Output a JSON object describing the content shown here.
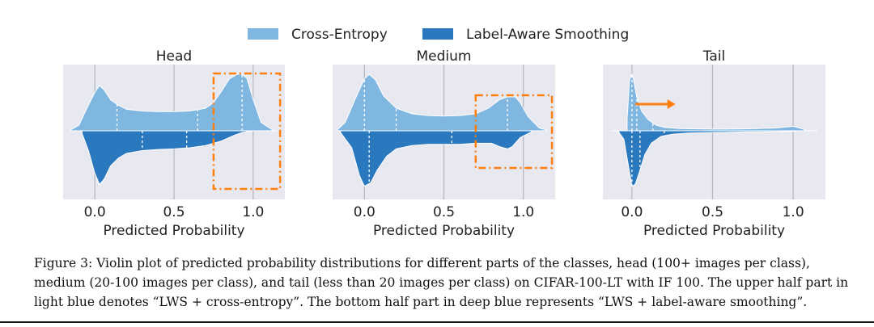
{
  "legend": [
    {
      "label": "Cross-Entropy",
      "color": "#7fb7e0"
    },
    {
      "label": "Label-Aware Smoothing",
      "color": "#2a78bd"
    }
  ],
  "colors": {
    "upper": "#7fb7e0",
    "lower": "#2a78bd",
    "panel_bg": "#e8e8f0",
    "highlight": "#ff7f0e"
  },
  "chart_data": [
    {
      "type": "violin",
      "title": "Head",
      "xlabel": "Predicted Probability",
      "xlim": [
        -0.2,
        1.2
      ],
      "xticks": [
        0.0,
        0.5,
        1.0
      ],
      "xtick_labels": [
        "0.0",
        "0.5",
        "1.0"
      ],
      "series": [
        {
          "name": "Cross-Entropy",
          "side": "upper",
          "density_x": [
            -0.15,
            -0.1,
            -0.05,
            0.0,
            0.03,
            0.06,
            0.1,
            0.15,
            0.2,
            0.3,
            0.4,
            0.5,
            0.6,
            0.7,
            0.75,
            0.8,
            0.85,
            0.9,
            0.93,
            0.96,
            1.0,
            1.05,
            1.12
          ],
          "density_y": [
            0.02,
            0.1,
            0.4,
            0.68,
            0.8,
            0.72,
            0.55,
            0.45,
            0.38,
            0.35,
            0.34,
            0.34,
            0.35,
            0.4,
            0.5,
            0.7,
            0.92,
            1.0,
            1.0,
            0.93,
            0.55,
            0.15,
            0.02
          ],
          "quartiles": [
            0.14,
            0.65,
            0.93
          ]
        },
        {
          "name": "Label-Aware Smoothing",
          "side": "lower",
          "density_x": [
            -0.08,
            -0.04,
            0.0,
            0.03,
            0.06,
            0.1,
            0.15,
            0.2,
            0.3,
            0.4,
            0.5,
            0.6,
            0.7,
            0.8,
            0.88,
            0.93,
            0.97,
            1.0
          ],
          "density_y": [
            0.05,
            0.35,
            0.75,
            0.95,
            0.85,
            0.62,
            0.48,
            0.4,
            0.35,
            0.33,
            0.32,
            0.3,
            0.26,
            0.18,
            0.08,
            0.03,
            0.01,
            0.0
          ],
          "quartiles": [
            0.3,
            0.58
          ]
        }
      ],
      "highlight_box": {
        "x_range": [
          0.75,
          1.17
        ],
        "label": ""
      }
    },
    {
      "type": "violin",
      "title": "Medium",
      "xlabel": "Predicted Probability",
      "xlim": [
        -0.2,
        1.2
      ],
      "xticks": [
        0.0,
        0.5,
        1.0
      ],
      "xtick_labels": [
        "0.0",
        "0.5",
        "1.0"
      ],
      "series": [
        {
          "name": "Cross-Entropy",
          "side": "upper",
          "density_x": [
            -0.17,
            -0.12,
            -0.06,
            0.0,
            0.03,
            0.07,
            0.12,
            0.2,
            0.3,
            0.4,
            0.5,
            0.6,
            0.7,
            0.78,
            0.85,
            0.9,
            0.95,
            0.98,
            1.03,
            1.1,
            1.15
          ],
          "density_y": [
            0.02,
            0.15,
            0.55,
            0.92,
            1.0,
            0.9,
            0.62,
            0.4,
            0.3,
            0.27,
            0.26,
            0.27,
            0.3,
            0.4,
            0.55,
            0.6,
            0.6,
            0.5,
            0.25,
            0.05,
            0.01
          ],
          "quartiles": [
            0.0,
            0.2,
            0.9
          ]
        },
        {
          "name": "Label-Aware Smoothing",
          "side": "lower",
          "density_x": [
            -0.15,
            -0.08,
            -0.03,
            0.0,
            0.04,
            0.08,
            0.14,
            0.2,
            0.3,
            0.4,
            0.5,
            0.6,
            0.7,
            0.8,
            0.85,
            0.9,
            0.93,
            0.98,
            1.05
          ],
          "density_y": [
            0.03,
            0.3,
            0.8,
            0.98,
            0.92,
            0.7,
            0.45,
            0.32,
            0.26,
            0.24,
            0.24,
            0.24,
            0.22,
            0.22,
            0.28,
            0.32,
            0.28,
            0.12,
            0.02
          ],
          "quartiles": [
            0.03,
            0.55
          ]
        }
      ],
      "highlight_box": {
        "x_range": [
          0.7,
          1.18
        ],
        "label": ""
      }
    },
    {
      "type": "violin",
      "title": "Tail",
      "xlabel": "Predicted Probability",
      "xlim": [
        -0.18,
        1.2
      ],
      "xticks": [
        0.0,
        0.5,
        1.0
      ],
      "xtick_labels": [
        "0.0",
        "0.5",
        "1.0"
      ],
      "series": [
        {
          "name": "Cross-Entropy",
          "side": "upper",
          "density_x": [
            -0.03,
            -0.015,
            0.0,
            0.01,
            0.03,
            0.06,
            0.1,
            0.15,
            0.2,
            0.3,
            0.5,
            0.7,
            0.9,
            1.0,
            1.05,
            1.08
          ],
          "density_y": [
            0.2,
            0.9,
            1.0,
            0.9,
            0.6,
            0.35,
            0.2,
            0.1,
            0.06,
            0.04,
            0.03,
            0.035,
            0.05,
            0.08,
            0.04,
            0.01
          ],
          "quartiles": [
            0.0,
            0.03,
            0.13
          ]
        },
        {
          "name": "Label-Aware Smoothing",
          "side": "lower",
          "density_x": [
            -0.08,
            -0.05,
            -0.02,
            0.0,
            0.02,
            0.05,
            0.08,
            0.12,
            0.18,
            0.25,
            0.35,
            0.5,
            0.7,
            0.9,
            1.0,
            1.05
          ],
          "density_y": [
            0.03,
            0.15,
            0.65,
            0.98,
            0.95,
            0.7,
            0.42,
            0.22,
            0.1,
            0.06,
            0.04,
            0.03,
            0.02,
            0.015,
            0.01,
            0.0
          ],
          "quartiles": [
            0.0,
            0.05,
            0.2
          ]
        }
      ],
      "arrow": {
        "from": 0.02,
        "to": 0.27
      }
    }
  ],
  "caption": "Figure 3: Violin plot of predicted probability distributions for different parts of the classes, head (100+ images per class), medium (20-100 images per class), and tail (less than 20 images per class) on CIFAR-100-LT with IF 100. The upper half part in light blue denotes “LWS + cross-entropy”. The bottom half part in deep blue represents “LWS + label-aware smoothing”."
}
